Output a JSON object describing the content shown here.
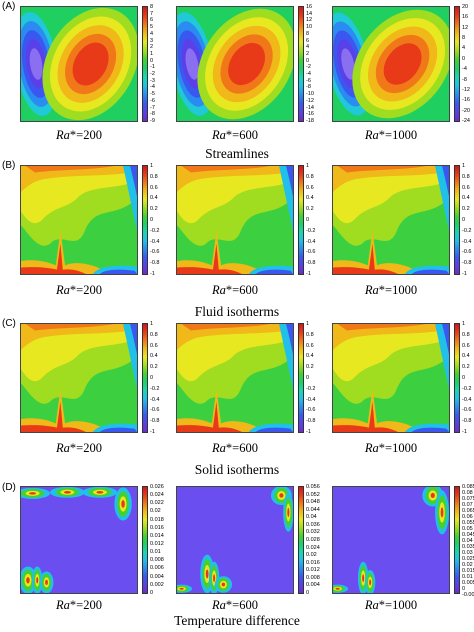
{
  "rows": [
    {
      "letter": "(A)",
      "title": "Streamlines",
      "kind": "stream",
      "plots": [
        {
          "ra_value": "=200",
          "ticks": [
            "8",
            "7",
            "6",
            "5",
            "4",
            "3",
            "2",
            "1",
            "0",
            "-1",
            "-2",
            "-3",
            "-4",
            "-5",
            "-6",
            "-7",
            "-8",
            "-9"
          ]
        },
        {
          "ra_value": "=600",
          "ticks": [
            "16",
            "14",
            "12",
            "10",
            "8",
            "6",
            "4",
            "2",
            "0",
            "-2",
            "-4",
            "-6",
            "-8",
            "-10",
            "-12",
            "-14",
            "-16",
            "-18"
          ]
        },
        {
          "ra_value": "=1000",
          "ticks": [
            "20",
            "16",
            "12",
            "8",
            "4",
            "0",
            "-4",
            "-8",
            "-12",
            "-16",
            "-20",
            "-24"
          ]
        }
      ]
    },
    {
      "letter": "(B)",
      "title": "Fluid isotherms",
      "kind": "iso",
      "plots": [
        {
          "ra_value": "=200",
          "ticks": [
            "1",
            "0.8",
            "0.6",
            "0.4",
            "0.2",
            "0",
            "-0.2",
            "-0.4",
            "-0.6",
            "-0.8",
            "-1"
          ]
        },
        {
          "ra_value": "=600",
          "ticks": [
            "1",
            "0.8",
            "0.6",
            "0.4",
            "0.2",
            "0",
            "-0.2",
            "-0.4",
            "-0.6",
            "-0.8",
            "-1"
          ]
        },
        {
          "ra_value": "=1000",
          "ticks": [
            "1",
            "0.8",
            "0.6",
            "0.4",
            "0.2",
            "0",
            "-0.2",
            "-0.4",
            "-0.6",
            "-0.8",
            "-1"
          ]
        }
      ]
    },
    {
      "letter": "(C)",
      "title": "Solid isotherms",
      "kind": "iso",
      "plots": [
        {
          "ra_value": "=200",
          "ticks": [
            "1",
            "0.8",
            "0.6",
            "0.4",
            "0.2",
            "0",
            "-0.2",
            "-0.4",
            "-0.6",
            "-0.8",
            "-1"
          ]
        },
        {
          "ra_value": "=600",
          "ticks": [
            "1",
            "0.8",
            "0.6",
            "0.4",
            "0.2",
            "0",
            "-0.2",
            "-0.4",
            "-0.6",
            "-0.8",
            "-1"
          ]
        },
        {
          "ra_value": "=1000",
          "ticks": [
            "1",
            "0.8",
            "0.6",
            "0.4",
            "0.2",
            "0",
            "-0.2",
            "-0.4",
            "-0.6",
            "-0.8",
            "-1"
          ]
        }
      ]
    },
    {
      "letter": "(D)",
      "title": "Temperature difference",
      "kind": "diff",
      "plots": [
        {
          "ra_value": "=200",
          "ticks": [
            "0.026",
            "0.024",
            "0.022",
            "0.02",
            "0.018",
            "0.016",
            "0.014",
            "0.012",
            "0.01",
            "0.008",
            "0.006",
            "0.004",
            "0.002",
            "0"
          ]
        },
        {
          "ra_value": "=600",
          "ticks": [
            "0.056",
            "0.052",
            "0.048",
            "0.044",
            "0.04",
            "0.036",
            "0.032",
            "0.028",
            "0.024",
            "0.02",
            "0.016",
            "0.012",
            "0.008",
            "0.004",
            "0"
          ]
        },
        {
          "ra_value": "=1000",
          "ticks": [
            "0.085",
            "0.08",
            "0.075",
            "0.07",
            "0.065",
            "0.06",
            "0.055",
            "0.05",
            "0.045",
            "0.04",
            "0.035",
            "0.03",
            "0.025",
            "0.02",
            "0.015",
            "0.01",
            "0.005",
            "0",
            "-0.005"
          ]
        }
      ]
    }
  ],
  "ra_prefix": "Ra",
  "ra_star": "*",
  "colors": {
    "colormap": [
      "#6a2ec8",
      "#5a40e8",
      "#3a58f0",
      "#2a8cf0",
      "#20c0e8",
      "#18d8b0",
      "#1cd068",
      "#46d030",
      "#a0dc20",
      "#e8e820",
      "#f0b818",
      "#f07818",
      "#e83a18",
      "#d01818"
    ],
    "background": "#ffffff"
  }
}
